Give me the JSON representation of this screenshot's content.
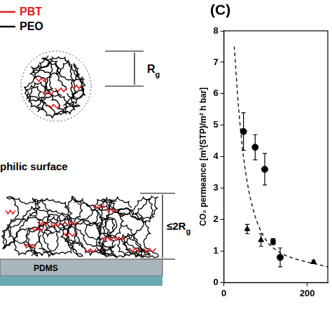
{
  "chart_data": {
    "type": "scatter",
    "panel_label": "(C)",
    "y_label": "CO₂ permeance [m³(STP)/m² h bar]",
    "xlim": [
      0,
      250
    ],
    "xticks": [
      0,
      200
    ],
    "ylim": [
      0,
      8
    ],
    "yticks": [
      0,
      1,
      2,
      3,
      4,
      5,
      6,
      7,
      8
    ],
    "grid": false,
    "series": [
      {
        "color": "#000000",
        "marker": "circle",
        "x": [
          47,
          75,
          98,
          135
        ],
        "values": [
          4.8,
          4.3,
          3.6,
          0.8
        ],
        "errors": [
          0.6,
          0.4,
          0.5,
          0.3
        ]
      },
      {
        "color": "#000000",
        "marker": "triangle",
        "x": [
          56,
          89,
          215
        ],
        "values": [
          1.7,
          1.35,
          0.65
        ],
        "errors": [
          0.15,
          0.2,
          0.05
        ]
      },
      {
        "color": "#000000",
        "marker": "square",
        "x": [
          118
        ],
        "values": [
          1.3
        ],
        "errors": [
          0.1
        ]
      },
      {
        "type": "line",
        "color": "#000000",
        "line_style": "dashed",
        "x": [
          25,
          35,
          47,
          60,
          75,
          90,
          110,
          135,
          160,
          200,
          250
        ],
        "values": [
          7.5,
          5.6,
          4.0,
          2.9,
          2.1,
          1.6,
          1.2,
          0.95,
          0.8,
          0.65,
          0.5
        ]
      }
    ]
  },
  "diagram": {
    "legend": [
      {
        "label": "PBT",
        "color": "#e02020"
      },
      {
        "label": "PEO",
        "color": "#000000"
      }
    ],
    "coil_label": {
      "base": "R",
      "sub": "g"
    },
    "surface_label": "philic surface",
    "thickness_label": {
      "base": "≤2R",
      "sub": "g"
    },
    "substrate_label": "PDMS"
  }
}
